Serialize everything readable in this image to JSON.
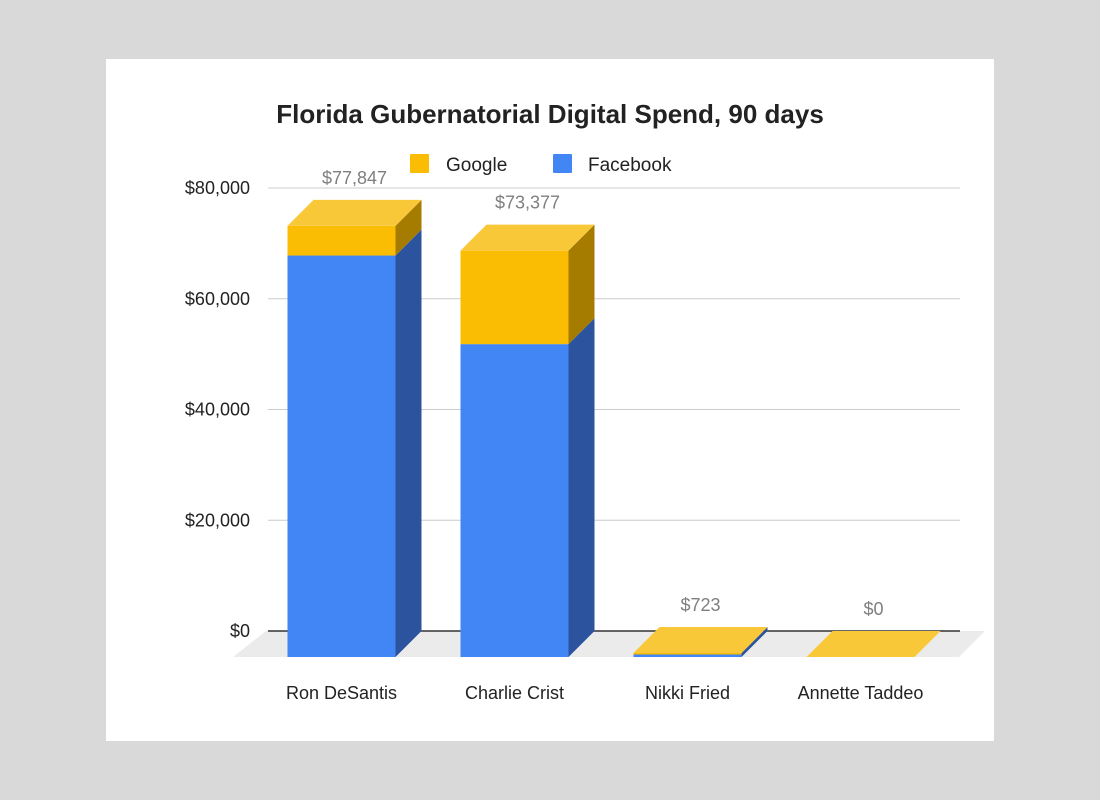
{
  "chart_data": {
    "type": "bar",
    "stacked": true,
    "three_d": true,
    "title": "Florida Gubernatorial Digital Spend, 90 days",
    "categories": [
      "Ron DeSantis",
      "Charlie Crist",
      "Nikki Fried",
      "Annette Taddeo"
    ],
    "series": [
      {
        "name": "Facebook",
        "color": "#4285f4",
        "side_color": "#2c539e",
        "values": [
          72500,
          56500,
          700,
          0
        ]
      },
      {
        "name": "Google",
        "color": "#fbbc04",
        "top_color": "#f9c839",
        "side_color": "#a57c00",
        "values": [
          5347,
          16877,
          23,
          0
        ]
      }
    ],
    "legend": [
      {
        "name": "Google",
        "color": "#fbbc04"
      },
      {
        "name": "Facebook",
        "color": "#4285f4"
      }
    ],
    "totals": [
      "$77,847",
      "$73,377",
      "$723",
      "$0"
    ],
    "y_ticks": [
      "$0",
      "$20,000",
      "$40,000",
      "$60,000",
      "$80,000"
    ],
    "y_tick_values": [
      0,
      20000,
      40000,
      60000,
      80000
    ],
    "ylim": [
      0,
      80000
    ],
    "xlabel": "",
    "ylabel": "",
    "grid": true,
    "legend_position": "top"
  }
}
